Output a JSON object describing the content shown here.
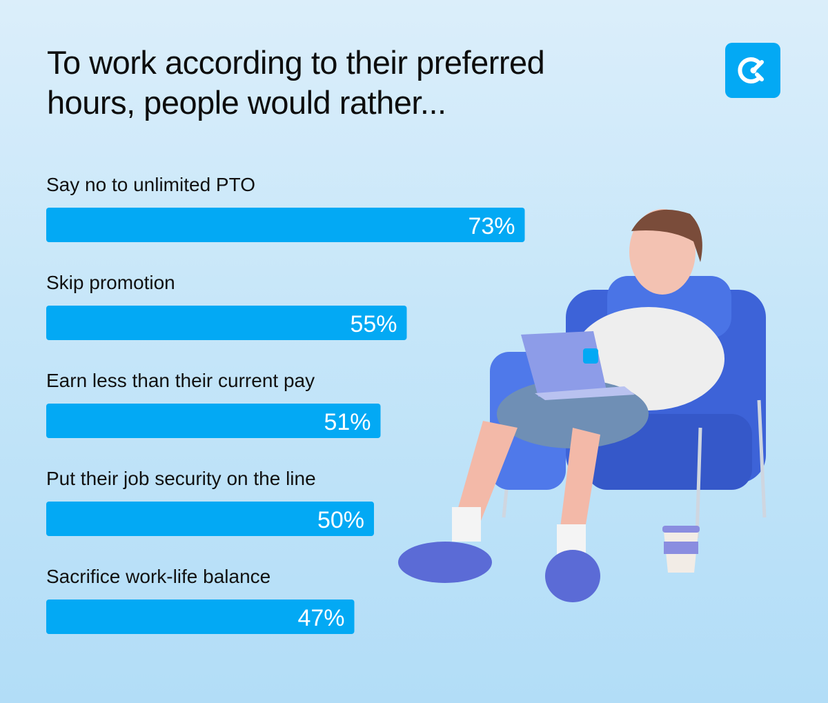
{
  "title_line1": "To work according to their preferred",
  "title_line2": "hours, people would rather...",
  "logo_icon": "clockify-logo-icon",
  "colors": {
    "bar": "#03a9f4",
    "text": "#111111",
    "value_text": "#ffffff"
  },
  "chart_data": {
    "type": "bar",
    "orientation": "horizontal",
    "categories": [
      "Say no to unlimited PTO",
      "Skip promotion",
      "Earn less than their current pay",
      "Put their job security on the line",
      "Sacrifice work-life balance"
    ],
    "values": [
      73,
      55,
      51,
      50,
      47
    ],
    "value_labels": [
      "73%",
      "55%",
      "51%",
      "50%",
      "47%"
    ],
    "unit": "%",
    "xlim": [
      0,
      100
    ],
    "grid": false,
    "legend": "none"
  }
}
